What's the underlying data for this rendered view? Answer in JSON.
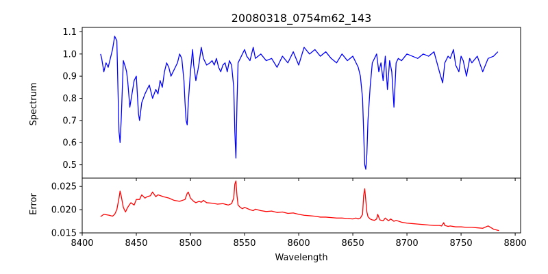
{
  "chart_data": [
    {
      "type": "line",
      "panel": "spectrum",
      "title": "20080318_0754m62_143",
      "xlabel": "",
      "ylabel": "Spectrum",
      "xlim": [
        8400,
        8805
      ],
      "ylim": [
        0.44,
        1.12
      ],
      "xticks": [
        8400,
        8450,
        8500,
        8550,
        8600,
        8650,
        8700,
        8750,
        8800
      ],
      "yticks": [
        0.5,
        0.6,
        0.7,
        0.8,
        0.9,
        1.0,
        1.1
      ],
      "ytick_labels": [
        "0.5",
        "0.6",
        "0.7",
        "0.8",
        "0.9",
        "1.0",
        "1.1"
      ],
      "series": [
        {
          "color": "#0000ff",
          "x": [
            8417,
            8418,
            8420,
            8422,
            8424,
            8426,
            8428,
            8430,
            8432,
            8433,
            8434,
            8435,
            8436,
            8438,
            8440,
            8441,
            8442,
            8444,
            8446,
            8448,
            8450,
            8452,
            8453,
            8455,
            8458,
            8460,
            8462,
            8465,
            8468,
            8470,
            8472,
            8474,
            8476,
            8478,
            8480,
            8482,
            8485,
            8488,
            8490,
            8492,
            8494,
            8495,
            8496,
            8497,
            8498,
            8500,
            8502,
            8503,
            8505,
            8507,
            8508,
            8510,
            8512,
            8515,
            8518,
            8520,
            8522,
            8524,
            8526,
            8528,
            8530,
            8532,
            8534,
            8536,
            8538,
            8540,
            8541,
            8542,
            8543,
            8544,
            8546,
            8548,
            8550,
            8552,
            8555,
            8558,
            8560,
            8565,
            8570,
            8575,
            8580,
            8585,
            8590,
            8595,
            8600,
            8605,
            8610,
            8615,
            8620,
            8625,
            8630,
            8635,
            8640,
            8645,
            8650,
            8653,
            8655,
            8657,
            8659,
            8660,
            8661,
            8662,
            8663,
            8664,
            8666,
            8668,
            8670,
            8672,
            8674,
            8676,
            8678,
            8680,
            8682,
            8684,
            8686,
            8688,
            8690,
            8692,
            8695,
            8700,
            8705,
            8710,
            8715,
            8720,
            8725,
            8730,
            8733,
            8735,
            8738,
            8740,
            8743,
            8745,
            8748,
            8750,
            8752,
            8755,
            8758,
            8760,
            8765,
            8770,
            8775,
            8780,
            8784
          ],
          "y": [
            1.0,
            0.98,
            0.92,
            0.96,
            0.94,
            0.98,
            1.02,
            1.08,
            1.06,
            0.85,
            0.65,
            0.6,
            0.7,
            0.97,
            0.94,
            0.92,
            0.88,
            0.76,
            0.82,
            0.88,
            0.9,
            0.73,
            0.7,
            0.78,
            0.82,
            0.84,
            0.86,
            0.8,
            0.84,
            0.82,
            0.88,
            0.85,
            0.92,
            0.96,
            0.94,
            0.9,
            0.93,
            0.96,
            1.0,
            0.98,
            0.88,
            0.78,
            0.7,
            0.68,
            0.78,
            0.92,
            1.02,
            0.95,
            0.88,
            0.93,
            0.96,
            1.03,
            0.98,
            0.95,
            0.96,
            0.97,
            0.95,
            0.98,
            0.94,
            0.92,
            0.95,
            0.96,
            0.92,
            0.97,
            0.95,
            0.85,
            0.65,
            0.53,
            0.78,
            0.96,
            0.98,
            1.0,
            1.02,
            0.99,
            0.97,
            1.03,
            0.98,
            1.0,
            0.97,
            0.98,
            0.94,
            0.99,
            0.96,
            1.01,
            0.95,
            1.03,
            1.0,
            1.02,
            0.99,
            1.01,
            0.98,
            0.96,
            1.0,
            0.97,
            0.99,
            0.96,
            0.94,
            0.9,
            0.8,
            0.65,
            0.5,
            0.48,
            0.55,
            0.7,
            0.85,
            0.96,
            0.98,
            1.0,
            0.92,
            0.96,
            0.88,
            0.99,
            0.84,
            0.97,
            0.92,
            0.76,
            0.96,
            0.98,
            0.97,
            1.0,
            0.99,
            0.98,
            1.0,
            0.99,
            1.01,
            0.92,
            0.87,
            0.96,
            0.99,
            0.98,
            1.02,
            0.95,
            0.92,
            0.99,
            0.97,
            0.9,
            0.98,
            0.96,
            0.99,
            0.92,
            0.98,
            0.99,
            1.01
          ]
        }
      ]
    },
    {
      "type": "line",
      "panel": "error",
      "title": "",
      "xlabel": "Wavelength",
      "ylabel": "Error",
      "xlim": [
        8400,
        8805
      ],
      "ylim": [
        0.015,
        0.0268
      ],
      "xticks": [
        8400,
        8450,
        8500,
        8550,
        8600,
        8650,
        8700,
        8750,
        8800
      ],
      "xtick_labels": [
        "8400",
        "8450",
        "8500",
        "8550",
        "8600",
        "8650",
        "8700",
        "8750",
        "8800"
      ],
      "yticks": [
        0.015,
        0.02,
        0.025
      ],
      "ytick_labels": [
        "0.015",
        "0.020",
        "0.025"
      ],
      "series": [
        {
          "color": "#ff0000",
          "x": [
            8417,
            8420,
            8425,
            8428,
            8430,
            8432,
            8434,
            8435,
            8436,
            8438,
            8440,
            8442,
            8445,
            8448,
            8450,
            8453,
            8455,
            8458,
            8460,
            8463,
            8465,
            8468,
            8470,
            8475,
            8480,
            8485,
            8490,
            8495,
            8497,
            8498,
            8500,
            8503,
            8505,
            8508,
            8510,
            8512,
            8515,
            8520,
            8525,
            8530,
            8535,
            8538,
            8540,
            8541,
            8542,
            8543,
            8544,
            8546,
            8548,
            8550,
            8555,
            8558,
            8560,
            8565,
            8570,
            8575,
            8580,
            8585,
            8590,
            8595,
            8600,
            8605,
            8610,
            8615,
            8620,
            8625,
            8630,
            8635,
            8640,
            8645,
            8650,
            8653,
            8655,
            8657,
            8659,
            8660,
            8661,
            8662,
            8663,
            8664,
            8666,
            8668,
            8670,
            8672,
            8673,
            8675,
            8678,
            8680,
            8683,
            8685,
            8688,
            8690,
            8695,
            8700,
            8705,
            8710,
            8715,
            8720,
            8725,
            8730,
            8732,
            8734,
            8735,
            8738,
            8740,
            8745,
            8750,
            8755,
            8760,
            8765,
            8770,
            8775,
            8780,
            8785
          ],
          "y": [
            0.0185,
            0.019,
            0.0188,
            0.0186,
            0.019,
            0.02,
            0.0225,
            0.024,
            0.023,
            0.0205,
            0.0195,
            0.0205,
            0.0215,
            0.021,
            0.0222,
            0.0222,
            0.0232,
            0.0225,
            0.0228,
            0.023,
            0.0238,
            0.0228,
            0.0232,
            0.0228,
            0.0225,
            0.022,
            0.0218,
            0.0222,
            0.0235,
            0.0238,
            0.0225,
            0.0218,
            0.0215,
            0.0218,
            0.0216,
            0.022,
            0.0215,
            0.0214,
            0.0212,
            0.0213,
            0.021,
            0.0213,
            0.0225,
            0.0255,
            0.0262,
            0.023,
            0.021,
            0.0205,
            0.0202,
            0.0205,
            0.02,
            0.0198,
            0.0201,
            0.0198,
            0.0196,
            0.0197,
            0.0194,
            0.0195,
            0.0192,
            0.0193,
            0.019,
            0.0188,
            0.0187,
            0.0186,
            0.0184,
            0.0184,
            0.0183,
            0.0182,
            0.0182,
            0.0181,
            0.018,
            0.0182,
            0.018,
            0.0182,
            0.019,
            0.023,
            0.0245,
            0.022,
            0.0195,
            0.0185,
            0.018,
            0.0178,
            0.0177,
            0.018,
            0.019,
            0.0178,
            0.0176,
            0.0182,
            0.0176,
            0.018,
            0.0175,
            0.0177,
            0.0173,
            0.0171,
            0.017,
            0.0169,
            0.0168,
            0.0167,
            0.0166,
            0.0166,
            0.0165,
            0.0172,
            0.0166,
            0.0164,
            0.0165,
            0.0163,
            0.0163,
            0.0162,
            0.0162,
            0.0161,
            0.016,
            0.0165,
            0.0158,
            0.0155
          ]
        }
      ]
    }
  ]
}
